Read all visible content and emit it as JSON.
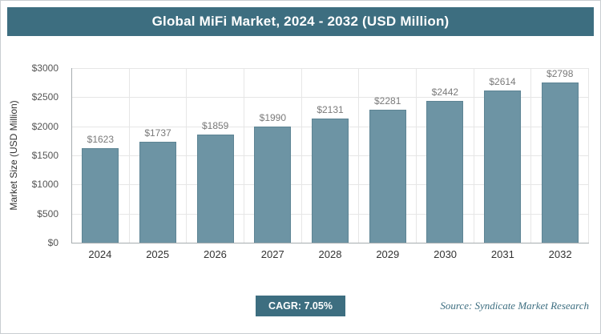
{
  "header": {
    "title": "Global MiFi Market, 2024 - 2032 (USD Million)"
  },
  "chart_data": {
    "type": "bar",
    "title": "Global MiFi Market, 2024 - 2032 (USD Million)",
    "categories": [
      "2024",
      "2025",
      "2026",
      "2027",
      "2028",
      "2029",
      "2030",
      "2031",
      "2032"
    ],
    "values": [
      1623,
      1737,
      1859,
      1990,
      2131,
      2281,
      2442,
      2614,
      2798
    ],
    "value_labels": [
      "$1623",
      "$1737",
      "$1859",
      "$1990",
      "$2131",
      "$2281",
      "$2442",
      "$2614",
      "$2798"
    ],
    "xlabel": "",
    "ylabel": "Market Size (USD Million)",
    "ylim": [
      0,
      3000
    ],
    "yticks": [
      0,
      500,
      1000,
      1500,
      2000,
      2500,
      3000
    ],
    "ytick_labels": [
      "$0",
      "$500",
      "$1000",
      "$1500",
      "$2000",
      "$2500",
      "$3000"
    ],
    "grid": true,
    "legend": "none",
    "bar_color": "#6d94a4"
  },
  "footer": {
    "cagr_label": "CAGR: 7.05%",
    "source": "Source: Syndicate Market Research"
  },
  "colors": {
    "accent": "#3d6e80",
    "bar": "#6d94a4",
    "gridline": "#e6e6e6"
  }
}
